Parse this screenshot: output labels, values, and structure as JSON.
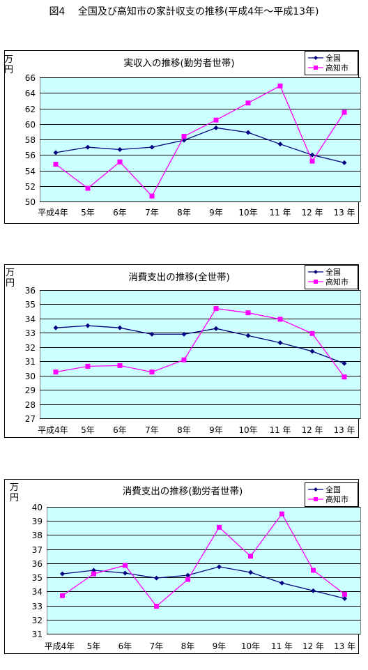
{
  "page_title": "図4　 全国及び高知市の家計収支の推移(平成4年〜平成13年)",
  "colors": {
    "national": "#000080",
    "kochi": "#ff00ff",
    "plot_bg": "#ccffff"
  },
  "chart_data": [
    {
      "type": "line",
      "title": "実収入の推移(勤労者世帯)",
      "ylabel": "万\n円",
      "ylim": [
        50,
        66
      ],
      "ystep": 2,
      "categories": [
        "平成4年",
        "5年",
        "6年",
        "7年",
        "8年",
        "9年",
        "10年",
        "11 年",
        "12 年",
        "13 年"
      ],
      "legend": "top-right",
      "series": [
        {
          "name": "全国",
          "values": [
            56.3,
            57.0,
            56.7,
            57.0,
            57.9,
            59.5,
            58.9,
            57.4,
            56.0,
            55.0
          ]
        },
        {
          "name": "高知市",
          "values": [
            54.8,
            51.7,
            55.1,
            50.7,
            58.4,
            60.5,
            62.7,
            64.9,
            55.2,
            61.5
          ]
        }
      ]
    },
    {
      "type": "line",
      "title": "消費支出の推移(全世帯)",
      "ylabel": "万\n円",
      "ylim": [
        27,
        36
      ],
      "ystep": 1,
      "categories": [
        "平成4年",
        "5年",
        "6年",
        "7年",
        "8年",
        "9年",
        "10年",
        "11 年",
        "12 年",
        "13 年"
      ],
      "legend": "top-right",
      "series": [
        {
          "name": "全国",
          "values": [
            33.35,
            33.5,
            33.35,
            32.9,
            32.9,
            33.3,
            32.8,
            32.3,
            31.7,
            30.85
          ]
        },
        {
          "name": "高知市",
          "values": [
            30.25,
            30.65,
            30.7,
            30.25,
            31.1,
            34.7,
            34.4,
            33.95,
            32.95,
            29.9
          ]
        }
      ]
    },
    {
      "type": "line",
      "title": "消費支出の推移(勤労者世帯)",
      "ylabel": "万\n円",
      "ylim": [
        31,
        40
      ],
      "ystep": 1,
      "categories": [
        "平成4年",
        "5年",
        "6年",
        "7年",
        "8年",
        "9年",
        "10年",
        "11 年",
        "12 年",
        "13 年"
      ],
      "legend": "top-right",
      "series": [
        {
          "name": "全国",
          "values": [
            35.25,
            35.5,
            35.3,
            34.95,
            35.15,
            35.75,
            35.35,
            34.6,
            34.05,
            33.5
          ]
        },
        {
          "name": "高知市",
          "values": [
            33.7,
            35.25,
            35.85,
            32.95,
            34.85,
            38.55,
            36.5,
            39.5,
            35.5,
            33.8
          ]
        }
      ]
    }
  ]
}
